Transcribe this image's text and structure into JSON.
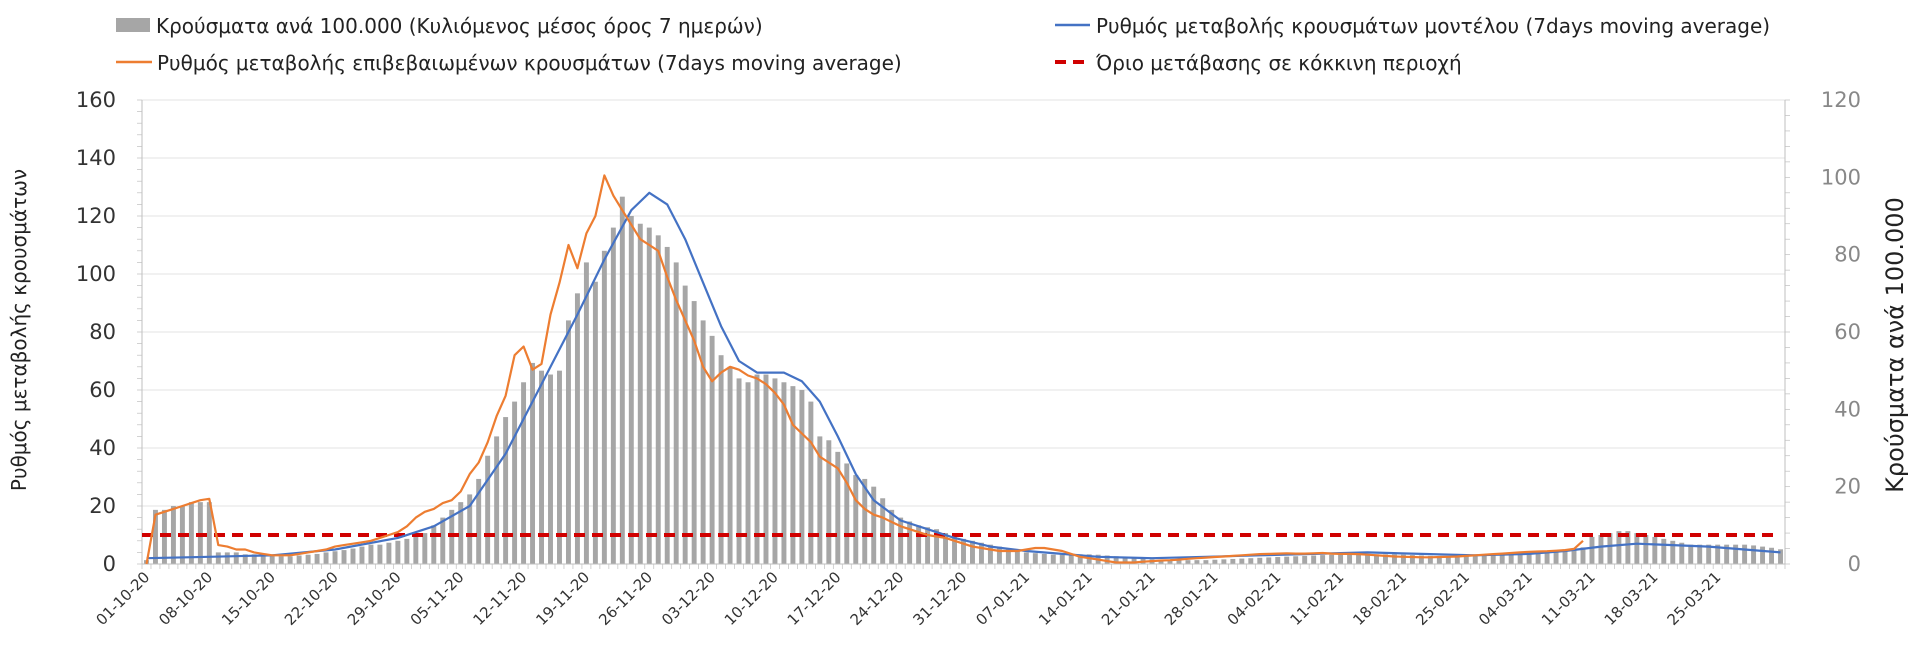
{
  "chart_data": {
    "type": "bar+line",
    "legend": {
      "bars": "Κρούσματα ανά 100.000 (Κυλιόμενος μέσος όρος 7 ημερών)",
      "model": "Ρυθμός μεταβολής κρουσμάτων μοντέλου (7days moving average)",
      "confirmed": "Ρυθμός μεταβολής επιβεβαιωμένων κρουσμάτων (7days moving average)",
      "threshold": "Όριο μετάβασης σε κόκκινη περιοχή"
    },
    "ylabel_left": "Ρυθμός μεταβολής κρουσμάτων",
    "ylabel_right": "Κρούσματα ανά 100.000",
    "ylim_left": [
      0,
      160
    ],
    "ylim_right": [
      0,
      120
    ],
    "yticks_left": [
      "0",
      "20",
      "40",
      "60",
      "80",
      "100",
      "120",
      "140",
      "160"
    ],
    "yticks_right": [
      "0",
      "20",
      "40",
      "60",
      "80",
      "100",
      "120"
    ],
    "x_ticks": [
      "01-10-20",
      "08-10-20",
      "15-10-20",
      "22-10-20",
      "29-10-20",
      "05-11-20",
      "12-11-20",
      "19-11-20",
      "26-11-20",
      "03-12-20",
      "10-12-20",
      "17-12-20",
      "24-12-20",
      "31-12-20",
      "07-01-21",
      "14-01-21",
      "21-01-21",
      "28-01-21",
      "04-02-21",
      "11-02-21",
      "18-02-21",
      "25-02-21",
      "04-03-21",
      "11-03-21",
      "18-03-21",
      "25-03-21"
    ],
    "n_days": 183,
    "threshold_value": 10,
    "bars_right_axis": [
      [
        0,
        1
      ],
      [
        1,
        14
      ],
      [
        2,
        14
      ],
      [
        3,
        15
      ],
      [
        4,
        15
      ],
      [
        5,
        16
      ],
      [
        6,
        16
      ],
      [
        7,
        16
      ],
      [
        8,
        3
      ],
      [
        9,
        3
      ],
      [
        10,
        3
      ],
      [
        11,
        2.5
      ],
      [
        12,
        2.5
      ],
      [
        13,
        2.5
      ],
      [
        14,
        2
      ],
      [
        15,
        2
      ],
      [
        16,
        2
      ],
      [
        17,
        2.2
      ],
      [
        18,
        2.4
      ],
      [
        19,
        2.6
      ],
      [
        20,
        3
      ],
      [
        21,
        3.3
      ],
      [
        22,
        3.6
      ],
      [
        23,
        4
      ],
      [
        24,
        4.5
      ],
      [
        25,
        5
      ],
      [
        26,
        5
      ],
      [
        27,
        5.5
      ],
      [
        28,
        6
      ],
      [
        29,
        6.5
      ],
      [
        30,
        7
      ],
      [
        31,
        8
      ],
      [
        32,
        10
      ],
      [
        33,
        12
      ],
      [
        34,
        14
      ],
      [
        35,
        16
      ],
      [
        36,
        18
      ],
      [
        37,
        22
      ],
      [
        38,
        28
      ],
      [
        39,
        33
      ],
      [
        40,
        38
      ],
      [
        41,
        42
      ],
      [
        42,
        47
      ],
      [
        43,
        52
      ],
      [
        44,
        50
      ],
      [
        45,
        49
      ],
      [
        46,
        50
      ],
      [
        47,
        63
      ],
      [
        48,
        70
      ],
      [
        49,
        78
      ],
      [
        50,
        73
      ],
      [
        51,
        81
      ],
      [
        52,
        87
      ],
      [
        53,
        95
      ],
      [
        54,
        90
      ],
      [
        55,
        88
      ],
      [
        56,
        87
      ],
      [
        57,
        85
      ],
      [
        58,
        82
      ],
      [
        59,
        78
      ],
      [
        60,
        72
      ],
      [
        61,
        68
      ],
      [
        62,
        63
      ],
      [
        63,
        59
      ],
      [
        64,
        54
      ],
      [
        65,
        51
      ],
      [
        66,
        48
      ],
      [
        67,
        47
      ],
      [
        68,
        49
      ],
      [
        69,
        49
      ],
      [
        70,
        48
      ],
      [
        71,
        47
      ],
      [
        72,
        46
      ],
      [
        73,
        45
      ],
      [
        74,
        42
      ],
      [
        75,
        33
      ],
      [
        76,
        32
      ],
      [
        77,
        29
      ],
      [
        78,
        26
      ],
      [
        79,
        23
      ],
      [
        80,
        22
      ],
      [
        81,
        20
      ],
      [
        82,
        17
      ],
      [
        83,
        14
      ],
      [
        84,
        12
      ],
      [
        85,
        11
      ],
      [
        86,
        10
      ],
      [
        87,
        9.5
      ],
      [
        88,
        9
      ],
      [
        89,
        8
      ],
      [
        90,
        7
      ],
      [
        91,
        6.5
      ],
      [
        92,
        6
      ],
      [
        93,
        5.5
      ],
      [
        94,
        5
      ],
      [
        95,
        4.5
      ],
      [
        96,
        4
      ],
      [
        97,
        3.5
      ],
      [
        98,
        3
      ],
      [
        99,
        2.8
      ],
      [
        100,
        2.6
      ],
      [
        101,
        2.4
      ],
      [
        102,
        2.4
      ],
      [
        103,
        2.4
      ],
      [
        104,
        2.5
      ],
      [
        105,
        2.5
      ],
      [
        106,
        2.4
      ],
      [
        107,
        2.2
      ],
      [
        108,
        2
      ],
      [
        109,
        1.8
      ],
      [
        110,
        1.6
      ],
      [
        111,
        1.4
      ],
      [
        112,
        1.2
      ],
      [
        113,
        1
      ],
      [
        114,
        1
      ],
      [
        115,
        1
      ],
      [
        116,
        1
      ],
      [
        117,
        1
      ],
      [
        118,
        1
      ],
      [
        119,
        1.1
      ],
      [
        120,
        1.2
      ],
      [
        121,
        1.3
      ],
      [
        122,
        1.4
      ],
      [
        123,
        1.5
      ],
      [
        124,
        1.6
      ],
      [
        125,
        1.7
      ],
      [
        126,
        1.8
      ],
      [
        127,
        1.9
      ],
      [
        128,
        2
      ],
      [
        129,
        2.1
      ],
      [
        130,
        2.2
      ],
      [
        131,
        2.3
      ],
      [
        132,
        2.4
      ],
      [
        133,
        2.5
      ],
      [
        134,
        2.5
      ],
      [
        135,
        2.6
      ],
      [
        136,
        2.6
      ],
      [
        137,
        2.5
      ],
      [
        138,
        2.5
      ],
      [
        139,
        2.5
      ],
      [
        140,
        2.4
      ],
      [
        141,
        2.3
      ],
      [
        142,
        2.2
      ],
      [
        143,
        2.1
      ],
      [
        144,
        2
      ],
      [
        145,
        2
      ],
      [
        146,
        2
      ],
      [
        147,
        2
      ],
      [
        148,
        2
      ],
      [
        149,
        2.1
      ],
      [
        150,
        2.2
      ],
      [
        151,
        2.4
      ],
      [
        152,
        2.6
      ],
      [
        153,
        2.8
      ],
      [
        154,
        3
      ],
      [
        155,
        3.2
      ],
      [
        156,
        3.4
      ],
      [
        157,
        3.6
      ],
      [
        158,
        3.8
      ],
      [
        159,
        4
      ],
      [
        160,
        4.3
      ],
      [
        161,
        7
      ],
      [
        162,
        7.5
      ],
      [
        163,
        8
      ],
      [
        164,
        8.5
      ],
      [
        165,
        8.5
      ],
      [
        166,
        8
      ],
      [
        167,
        7.5
      ],
      [
        168,
        7
      ],
      [
        169,
        6.5
      ],
      [
        170,
        6
      ],
      [
        171,
        5.5
      ],
      [
        172,
        5
      ],
      [
        173,
        5
      ],
      [
        174,
        5
      ],
      [
        175,
        5
      ],
      [
        176,
        5
      ],
      [
        177,
        5
      ],
      [
        178,
        5
      ],
      [
        179,
        4.8
      ],
      [
        180,
        4.5
      ],
      [
        181,
        4.2
      ],
      [
        182,
        3.8
      ]
    ],
    "model_line_left_axis": [
      [
        0,
        2
      ],
      [
        7,
        2.5
      ],
      [
        14,
        3
      ],
      [
        21,
        5
      ],
      [
        28,
        9
      ],
      [
        32,
        13
      ],
      [
        36,
        20
      ],
      [
        40,
        38
      ],
      [
        44,
        62
      ],
      [
        48,
        86
      ],
      [
        51,
        105
      ],
      [
        54,
        122
      ],
      [
        56,
        128
      ],
      [
        58,
        124
      ],
      [
        60,
        112
      ],
      [
        62,
        97
      ],
      [
        64,
        82
      ],
      [
        66,
        70
      ],
      [
        68,
        66
      ],
      [
        71,
        66
      ],
      [
        73,
        63
      ],
      [
        75,
        56
      ],
      [
        77,
        44
      ],
      [
        79,
        31
      ],
      [
        81,
        22
      ],
      [
        84,
        15
      ],
      [
        87,
        12
      ],
      [
        90,
        9
      ],
      [
        94,
        6
      ],
      [
        98,
        4.5
      ],
      [
        102,
        3.5
      ],
      [
        106,
        2.5
      ],
      [
        112,
        2
      ],
      [
        118,
        2.5
      ],
      [
        124,
        3
      ],
      [
        130,
        3.5
      ],
      [
        136,
        4
      ],
      [
        142,
        3.5
      ],
      [
        148,
        3
      ],
      [
        154,
        3.5
      ],
      [
        158,
        4.5
      ],
      [
        162,
        6
      ],
      [
        166,
        7
      ],
      [
        170,
        6.5
      ],
      [
        174,
        6
      ],
      [
        178,
        5
      ],
      [
        182,
        4
      ]
    ],
    "confirmed_line_left_axis": [
      [
        0,
        0
      ],
      [
        1,
        17
      ],
      [
        2,
        18
      ],
      [
        3,
        19
      ],
      [
        4,
        20
      ],
      [
        5,
        21
      ],
      [
        6,
        22
      ],
      [
        7,
        22.5
      ],
      [
        8,
        6.5
      ],
      [
        9,
        6
      ],
      [
        10,
        5
      ],
      [
        11,
        5
      ],
      [
        12,
        4
      ],
      [
        13,
        3.5
      ],
      [
        14,
        3
      ],
      [
        15,
        3
      ],
      [
        16,
        3
      ],
      [
        17,
        3.5
      ],
      [
        18,
        4
      ],
      [
        19,
        4.5
      ],
      [
        20,
        5
      ],
      [
        21,
        6
      ],
      [
        22,
        6.5
      ],
      [
        23,
        7
      ],
      [
        24,
        7.5
      ],
      [
        25,
        8
      ],
      [
        26,
        9
      ],
      [
        27,
        10
      ],
      [
        28,
        11
      ],
      [
        29,
        13
      ],
      [
        30,
        16
      ],
      [
        31,
        18
      ],
      [
        32,
        19
      ],
      [
        33,
        21
      ],
      [
        34,
        22
      ],
      [
        35,
        25
      ],
      [
        36,
        31
      ],
      [
        37,
        35
      ],
      [
        38,
        42
      ],
      [
        39,
        51
      ],
      [
        40,
        58
      ],
      [
        41,
        72
      ],
      [
        42,
        75
      ],
      [
        43,
        67
      ],
      [
        44,
        69
      ],
      [
        45,
        86
      ],
      [
        46,
        97
      ],
      [
        47,
        110
      ],
      [
        48,
        102
      ],
      [
        49,
        114
      ],
      [
        50,
        120
      ],
      [
        51,
        134
      ],
      [
        52,
        127
      ],
      [
        53,
        122
      ],
      [
        54,
        117
      ],
      [
        55,
        112
      ],
      [
        56,
        110
      ],
      [
        57,
        108
      ],
      [
        58,
        99
      ],
      [
        59,
        91
      ],
      [
        60,
        84
      ],
      [
        61,
        77
      ],
      [
        62,
        68
      ],
      [
        63,
        63
      ],
      [
        64,
        66
      ],
      [
        65,
        68
      ],
      [
        66,
        67
      ],
      [
        67,
        65
      ],
      [
        68,
        64
      ],
      [
        69,
        62
      ],
      [
        70,
        59
      ],
      [
        71,
        55
      ],
      [
        72,
        48
      ],
      [
        73,
        45
      ],
      [
        74,
        42
      ],
      [
        75,
        37
      ],
      [
        76,
        35
      ],
      [
        77,
        33
      ],
      [
        78,
        28
      ],
      [
        79,
        22
      ],
      [
        80,
        19
      ],
      [
        81,
        17
      ],
      [
        82,
        16
      ],
      [
        83,
        14.5
      ],
      [
        84,
        13
      ],
      [
        85,
        12
      ],
      [
        86,
        11
      ],
      [
        87,
        10
      ],
      [
        88,
        9.5
      ],
      [
        89,
        9
      ],
      [
        90,
        8
      ],
      [
        91,
        7
      ],
      [
        92,
        6
      ],
      [
        93,
        5.5
      ],
      [
        94,
        5
      ],
      [
        95,
        4.5
      ],
      [
        96,
        4.5
      ],
      [
        97,
        4.5
      ],
      [
        98,
        5
      ],
      [
        99,
        5.5
      ],
      [
        100,
        5.5
      ],
      [
        101,
        5
      ],
      [
        102,
        4.5
      ],
      [
        103,
        3.5
      ],
      [
        104,
        2.5
      ],
      [
        105,
        2
      ],
      [
        106,
        1.5
      ],
      [
        107,
        1
      ],
      [
        108,
        0.5
      ],
      [
        109,
        0.5
      ],
      [
        110,
        0.5
      ],
      [
        111,
        0.8
      ],
      [
        112,
        1
      ],
      [
        113,
        1.2
      ],
      [
        114,
        1.3
      ],
      [
        115,
        1.5
      ],
      [
        116,
        1.8
      ],
      [
        117,
        2
      ],
      [
        118,
        2.2
      ],
      [
        119,
        2.4
      ],
      [
        120,
        2.6
      ],
      [
        121,
        2.8
      ],
      [
        122,
        3
      ],
      [
        123,
        3.2
      ],
      [
        124,
        3.4
      ],
      [
        125,
        3.5
      ],
      [
        126,
        3.6
      ],
      [
        127,
        3.7
      ],
      [
        128,
        3.6
      ],
      [
        129,
        3.6
      ],
      [
        130,
        3.7
      ],
      [
        131,
        3.8
      ],
      [
        132,
        3.6
      ],
      [
        133,
        3.5
      ],
      [
        134,
        3.5
      ],
      [
        135,
        3.4
      ],
      [
        136,
        3.2
      ],
      [
        137,
        3
      ],
      [
        138,
        2.8
      ],
      [
        139,
        2.6
      ],
      [
        140,
        2.5
      ],
      [
        141,
        2.4
      ],
      [
        142,
        2.3
      ],
      [
        143,
        2.3
      ],
      [
        144,
        2.4
      ],
      [
        145,
        2.5
      ],
      [
        146,
        2.6
      ],
      [
        147,
        2.8
      ],
      [
        148,
        3
      ],
      [
        149,
        3.2
      ],
      [
        150,
        3.4
      ],
      [
        151,
        3.6
      ],
      [
        152,
        3.8
      ],
      [
        153,
        4
      ],
      [
        154,
        4.2
      ],
      [
        155,
        4.3
      ],
      [
        156,
        4.4
      ],
      [
        157,
        4.6
      ],
      [
        158,
        4.8
      ],
      [
        159,
        5.2
      ],
      [
        160,
        8
      ]
    ]
  }
}
